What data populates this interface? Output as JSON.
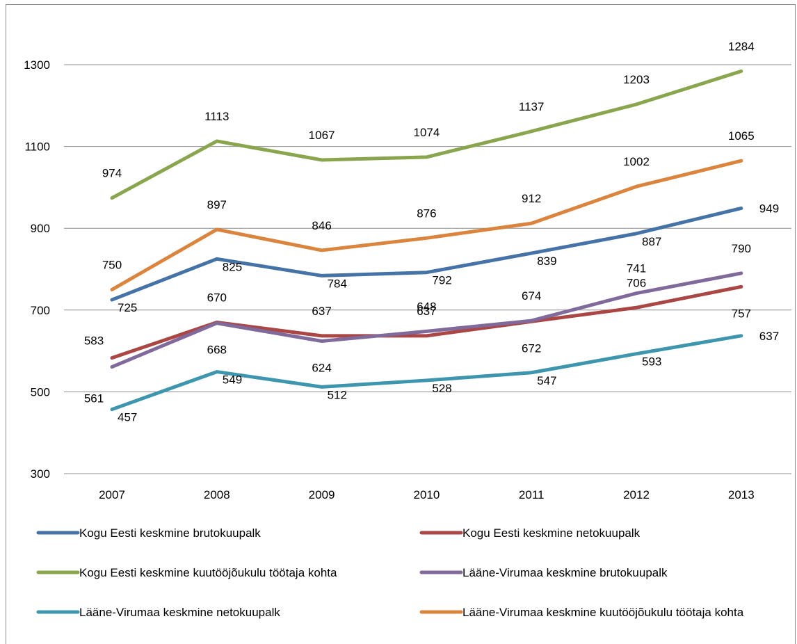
{
  "chart_data": {
    "type": "line",
    "title": "",
    "xlabel": "",
    "ylabel": "",
    "categories": [
      "2007",
      "2008",
      "2009",
      "2010",
      "2011",
      "2012",
      "2013"
    ],
    "y_ticks": [
      "300",
      "500",
      "700",
      "900",
      "1100",
      "1300"
    ],
    "ylim": [
      300,
      1400
    ],
    "grid": "horizontal",
    "legend_position": "bottom",
    "series": [
      {
        "name": "Kogu Eesti keskmine brutokuupalk",
        "color": "#4572a7",
        "values": [
          725,
          825,
          784,
          792,
          839,
          887,
          949
        ]
      },
      {
        "name": "Kogu Eesti keskmine netokuupalk",
        "color": "#aa4643",
        "values": [
          583,
          670,
          637,
          637,
          672,
          706,
          757
        ]
      },
      {
        "name": "Kogu Eesti keskmine kuutööjõukulu töötaja kohta",
        "color": "#89a54e",
        "values": [
          974,
          1113,
          1067,
          1074,
          1137,
          1203,
          1284
        ]
      },
      {
        "name": "Lääne-Virumaa keskmine brutokuupalk",
        "color": "#80699b",
        "values": [
          561,
          668,
          624,
          648,
          674,
          741,
          790
        ]
      },
      {
        "name": "Lääne-Virumaa keskmine netokuupalk",
        "color": "#3d96ae",
        "values": [
          457,
          549,
          512,
          528,
          547,
          593,
          637
        ]
      },
      {
        "name": "Lääne-Virumaa keskmine kuutööjõukulu töötaja kohta",
        "color": "#db843d",
        "values": [
          750,
          897,
          846,
          876,
          912,
          1002,
          1065
        ]
      }
    ]
  }
}
